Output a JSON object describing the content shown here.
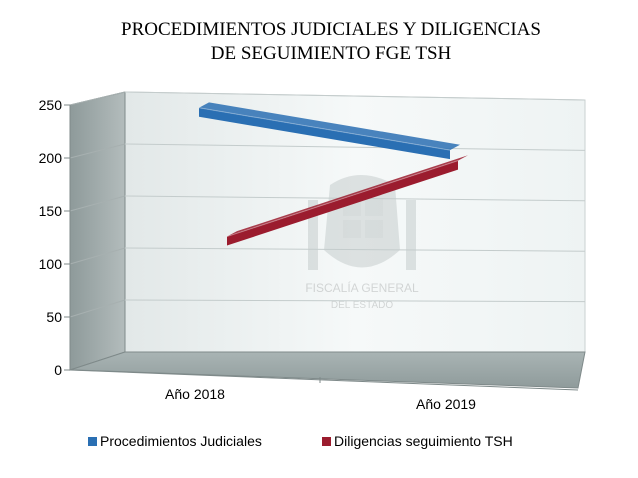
{
  "chart_data": {
    "type": "line",
    "title_lines": [
      "PROCEDIMIENTOS JUDICIALES Y DILIGENCIAS",
      "DE SEGUIMIENTO FGE TSH"
    ],
    "categories": [
      "Año 2018",
      "Año 2019"
    ],
    "series": [
      {
        "name": "Procedimientos Judiciales",
        "values": [
          221,
          181
        ],
        "color": "#2a6fb3"
      },
      {
        "name": "Diligencias seguimiento TSH",
        "values": [
          124,
          190
        ],
        "color": "#9b1c2e"
      }
    ],
    "ylim": [
      0,
      250
    ],
    "yticks": [
      "0",
      "50",
      "100",
      "150",
      "200",
      "250"
    ],
    "grid": true,
    "legend_position": "bottom",
    "watermark_text": [
      "FISCALÍA GENERAL",
      "DEL ESTADO"
    ]
  }
}
